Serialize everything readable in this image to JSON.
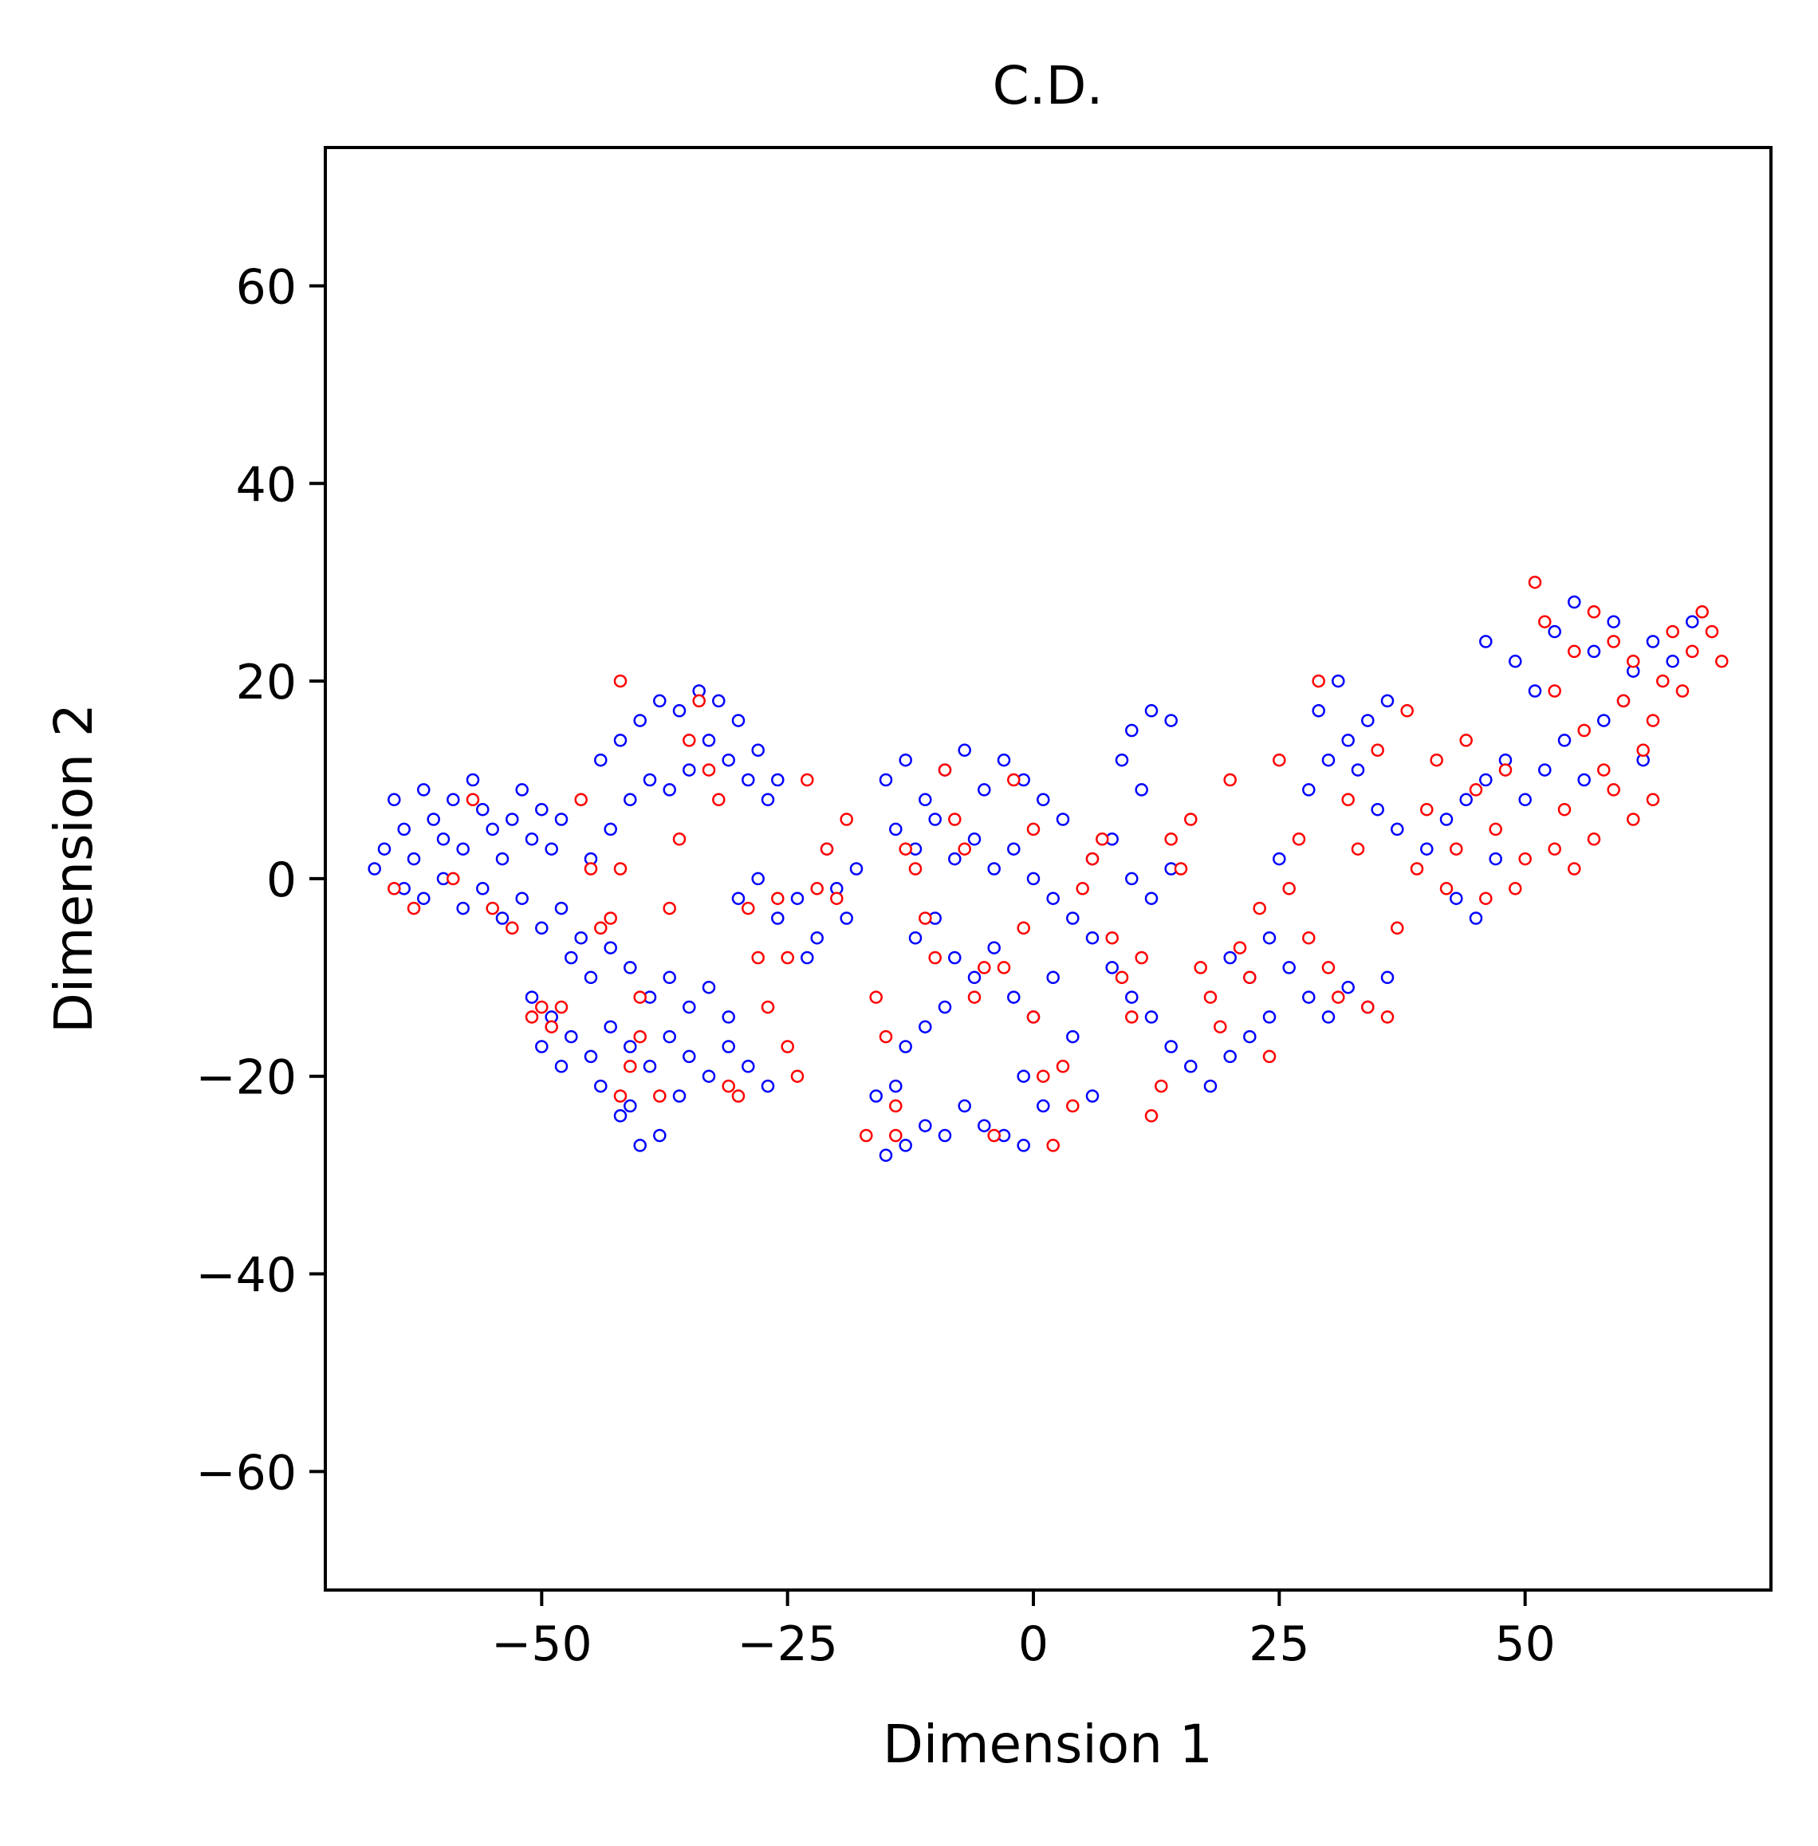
{
  "chart_data": {
    "type": "scatter",
    "title": "C.D.",
    "xlabel": "Dimension 1",
    "ylabel": "Dimension 2",
    "xlim": [
      -72,
      75
    ],
    "ylim": [
      -72,
      74
    ],
    "xticks": [
      -50,
      -25,
      0,
      25,
      50
    ],
    "yticks": [
      -60,
      -40,
      -20,
      0,
      20,
      40,
      60
    ],
    "xtick_labels": [
      "−50",
      "−25",
      "0",
      "25",
      "50"
    ],
    "ytick_labels": [
      "−60",
      "−40",
      "−20",
      "0",
      "20",
      "40",
      "60"
    ],
    "grid": false,
    "legend": false,
    "marker": "hollow-circle",
    "series": [
      {
        "color": "#0000ff",
        "points": [
          [
            -67,
            1
          ],
          [
            -66,
            3
          ],
          [
            -65,
            8
          ],
          [
            -64,
            5
          ],
          [
            -63,
            2
          ],
          [
            -62,
            9
          ],
          [
            -61,
            6
          ],
          [
            -60,
            4
          ],
          [
            -59,
            8
          ],
          [
            -58,
            3
          ],
          [
            -57,
            10
          ],
          [
            -56,
            7
          ],
          [
            -55,
            5
          ],
          [
            -54,
            2
          ],
          [
            -53,
            6
          ],
          [
            -52,
            9
          ],
          [
            -51,
            4
          ],
          [
            -50,
            7
          ],
          [
            -49,
            3
          ],
          [
            -48,
            6
          ],
          [
            -64,
            -1
          ],
          [
            -62,
            -2
          ],
          [
            -60,
            0
          ],
          [
            -58,
            -3
          ],
          [
            -56,
            -1
          ],
          [
            -54,
            -4
          ],
          [
            -52,
            -2
          ],
          [
            -50,
            -5
          ],
          [
            -48,
            -3
          ],
          [
            -46,
            -6
          ],
          [
            -45,
            2
          ],
          [
            -43,
            5
          ],
          [
            -41,
            8
          ],
          [
            -44,
            12
          ],
          [
            -42,
            14
          ],
          [
            -40,
            16
          ],
          [
            -38,
            18
          ],
          [
            -36,
            17
          ],
          [
            -34,
            19
          ],
          [
            -32,
            18
          ],
          [
            -30,
            16
          ],
          [
            -33,
            14
          ],
          [
            -31,
            12
          ],
          [
            -29,
            10
          ],
          [
            -35,
            11
          ],
          [
            -37,
            9
          ],
          [
            -39,
            10
          ],
          [
            -28,
            13
          ],
          [
            -27,
            8
          ],
          [
            -26,
            10
          ],
          [
            -47,
            -8
          ],
          [
            -45,
            -10
          ],
          [
            -43,
            -7
          ],
          [
            -41,
            -9
          ],
          [
            -39,
            -12
          ],
          [
            -37,
            -10
          ],
          [
            -35,
            -13
          ],
          [
            -33,
            -11
          ],
          [
            -31,
            -14
          ],
          [
            -49,
            -14
          ],
          [
            -47,
            -16
          ],
          [
            -45,
            -18
          ],
          [
            -43,
            -15
          ],
          [
            -41,
            -17
          ],
          [
            -39,
            -19
          ],
          [
            -37,
            -16
          ],
          [
            -35,
            -18
          ],
          [
            -33,
            -20
          ],
          [
            -31,
            -17
          ],
          [
            -29,
            -19
          ],
          [
            -51,
            -12
          ],
          [
            -50,
            -17
          ],
          [
            -48,
            -19
          ],
          [
            -44,
            -21
          ],
          [
            -42,
            -24
          ],
          [
            -40,
            -27
          ],
          [
            -38,
            -26
          ],
          [
            -41,
            -23
          ],
          [
            -36,
            -22
          ],
          [
            -27,
            -21
          ],
          [
            -30,
            -2
          ],
          [
            -28,
            0
          ],
          [
            -26,
            -4
          ],
          [
            -24,
            -2
          ],
          [
            -22,
            -6
          ],
          [
            -20,
            -1
          ],
          [
            -18,
            1
          ],
          [
            -21,
            3
          ],
          [
            -19,
            -4
          ],
          [
            -23,
            -8
          ],
          [
            -15,
            -28
          ],
          [
            -13,
            -27
          ],
          [
            -11,
            -25
          ],
          [
            -9,
            -26
          ],
          [
            -7,
            -23
          ],
          [
            -5,
            -25
          ],
          [
            -3,
            -26
          ],
          [
            -1,
            -27
          ],
          [
            -16,
            -22
          ],
          [
            -14,
            -21
          ],
          [
            -12,
            -6
          ],
          [
            -10,
            -4
          ],
          [
            -8,
            -8
          ],
          [
            -6,
            -10
          ],
          [
            -4,
            -7
          ],
          [
            -2,
            -12
          ],
          [
            0,
            -14
          ],
          [
            -13,
            -17
          ],
          [
            -11,
            -15
          ],
          [
            -9,
            -13
          ],
          [
            -15,
            10
          ],
          [
            -13,
            12
          ],
          [
            -11,
            8
          ],
          [
            -9,
            11
          ],
          [
            -7,
            13
          ],
          [
            -5,
            9
          ],
          [
            -3,
            12
          ],
          [
            -1,
            10
          ],
          [
            1,
            8
          ],
          [
            3,
            6
          ],
          [
            -14,
            5
          ],
          [
            -12,
            3
          ],
          [
            -10,
            6
          ],
          [
            -8,
            2
          ],
          [
            -6,
            4
          ],
          [
            -4,
            1
          ],
          [
            -2,
            3
          ],
          [
            0,
            0
          ],
          [
            2,
            -2
          ],
          [
            4,
            -4
          ],
          [
            6,
            2
          ],
          [
            8,
            4
          ],
          [
            10,
            0
          ],
          [
            12,
            -2
          ],
          [
            14,
            1
          ],
          [
            6,
            -6
          ],
          [
            8,
            -9
          ],
          [
            10,
            -12
          ],
          [
            12,
            -14
          ],
          [
            14,
            -17
          ],
          [
            16,
            -19
          ],
          [
            18,
            -21
          ],
          [
            20,
            -18
          ],
          [
            22,
            -16
          ],
          [
            24,
            -14
          ],
          [
            10,
            15
          ],
          [
            12,
            17
          ],
          [
            14,
            16
          ],
          [
            9,
            12
          ],
          [
            11,
            9
          ],
          [
            2,
            -10
          ],
          [
            4,
            -16
          ],
          [
            6,
            -22
          ],
          [
            -1,
            -20
          ],
          [
            1,
            -23
          ],
          [
            28,
            9
          ],
          [
            30,
            12
          ],
          [
            32,
            14
          ],
          [
            34,
            16
          ],
          [
            36,
            18
          ],
          [
            31,
            20
          ],
          [
            29,
            17
          ],
          [
            33,
            11
          ],
          [
            35,
            7
          ],
          [
            37,
            5
          ],
          [
            20,
            -8
          ],
          [
            22,
            -10
          ],
          [
            24,
            -6
          ],
          [
            26,
            -9
          ],
          [
            28,
            -12
          ],
          [
            30,
            -14
          ],
          [
            32,
            -11
          ],
          [
            34,
            -13
          ],
          [
            36,
            -10
          ],
          [
            25,
            2
          ],
          [
            40,
            3
          ],
          [
            42,
            6
          ],
          [
            44,
            8
          ],
          [
            46,
            10
          ],
          [
            48,
            12
          ],
          [
            43,
            -2
          ],
          [
            45,
            -4
          ],
          [
            47,
            2
          ],
          [
            46,
            24
          ],
          [
            49,
            22
          ],
          [
            51,
            19
          ],
          [
            53,
            25
          ],
          [
            55,
            28
          ],
          [
            57,
            23
          ],
          [
            59,
            26
          ],
          [
            61,
            21
          ],
          [
            63,
            24
          ],
          [
            65,
            22
          ],
          [
            67,
            26
          ],
          [
            50,
            8
          ],
          [
            52,
            11
          ],
          [
            54,
            14
          ],
          [
            56,
            10
          ],
          [
            58,
            16
          ],
          [
            60,
            18
          ],
          [
            62,
            12
          ]
        ]
      },
      {
        "color": "#ff0000",
        "points": [
          [
            -65,
            -1
          ],
          [
            -63,
            -3
          ],
          [
            -59,
            0
          ],
          [
            -57,
            8
          ],
          [
            -55,
            -3
          ],
          [
            -53,
            -5
          ],
          [
            -51,
            -14
          ],
          [
            -50,
            -13
          ],
          [
            -49,
            -15
          ],
          [
            -48,
            -13
          ],
          [
            -46,
            8
          ],
          [
            -45,
            1
          ],
          [
            -44,
            -5
          ],
          [
            -43,
            -4
          ],
          [
            -42,
            1
          ],
          [
            -42,
            20
          ],
          [
            -40,
            -12
          ],
          [
            -40,
            -16
          ],
          [
            -41,
            -19
          ],
          [
            -42,
            -22
          ],
          [
            -38,
            -22
          ],
          [
            -37,
            -3
          ],
          [
            -36,
            4
          ],
          [
            -35,
            14
          ],
          [
            -34,
            18
          ],
          [
            -33,
            11
          ],
          [
            -32,
            8
          ],
          [
            -31,
            -21
          ],
          [
            -30,
            -22
          ],
          [
            -29,
            -3
          ],
          [
            -28,
            -8
          ],
          [
            -27,
            -13
          ],
          [
            -26,
            -2
          ],
          [
            -25,
            -8
          ],
          [
            -25,
            -17
          ],
          [
            -24,
            -20
          ],
          [
            -23,
            10
          ],
          [
            -22,
            -1
          ],
          [
            -21,
            3
          ],
          [
            -20,
            -2
          ],
          [
            -19,
            6
          ],
          [
            -17,
            -26
          ],
          [
            -16,
            -12
          ],
          [
            -15,
            -16
          ],
          [
            -14,
            -23
          ],
          [
            -14,
            -26
          ],
          [
            -13,
            3
          ],
          [
            -12,
            1
          ],
          [
            -11,
            -4
          ],
          [
            -10,
            -8
          ],
          [
            -9,
            11
          ],
          [
            -8,
            6
          ],
          [
            -7,
            3
          ],
          [
            -6,
            -12
          ],
          [
            -5,
            -9
          ],
          [
            -4,
            -26
          ],
          [
            -3,
            -9
          ],
          [
            -2,
            10
          ],
          [
            -1,
            -5
          ],
          [
            0,
            5
          ],
          [
            0,
            -14
          ],
          [
            1,
            -20
          ],
          [
            2,
            -27
          ],
          [
            3,
            -19
          ],
          [
            4,
            -23
          ],
          [
            5,
            -1
          ],
          [
            6,
            2
          ],
          [
            7,
            4
          ],
          [
            8,
            -6
          ],
          [
            9,
            -10
          ],
          [
            10,
            -14
          ],
          [
            11,
            -8
          ],
          [
            12,
            -24
          ],
          [
            13,
            -21
          ],
          [
            14,
            4
          ],
          [
            15,
            1
          ],
          [
            16,
            6
          ],
          [
            17,
            -9
          ],
          [
            18,
            -12
          ],
          [
            19,
            -15
          ],
          [
            20,
            10
          ],
          [
            21,
            -7
          ],
          [
            22,
            -10
          ],
          [
            23,
            -3
          ],
          [
            24,
            -18
          ],
          [
            25,
            12
          ],
          [
            26,
            -1
          ],
          [
            27,
            4
          ],
          [
            28,
            -6
          ],
          [
            29,
            20
          ],
          [
            30,
            -9
          ],
          [
            31,
            -12
          ],
          [
            32,
            8
          ],
          [
            33,
            3
          ],
          [
            34,
            -13
          ],
          [
            35,
            13
          ],
          [
            36,
            -14
          ],
          [
            37,
            -5
          ],
          [
            38,
            17
          ],
          [
            39,
            1
          ],
          [
            40,
            7
          ],
          [
            41,
            12
          ],
          [
            42,
            -1
          ],
          [
            43,
            3
          ],
          [
            44,
            14
          ],
          [
            45,
            9
          ],
          [
            46,
            -2
          ],
          [
            47,
            5
          ],
          [
            48,
            11
          ],
          [
            49,
            -1
          ],
          [
            50,
            2
          ],
          [
            51,
            30
          ],
          [
            52,
            26
          ],
          [
            53,
            19
          ],
          [
            54,
            7
          ],
          [
            55,
            23
          ],
          [
            56,
            15
          ],
          [
            57,
            27
          ],
          [
            58,
            11
          ],
          [
            59,
            24
          ],
          [
            60,
            18
          ],
          [
            61,
            22
          ],
          [
            62,
            13
          ],
          [
            63,
            16
          ],
          [
            64,
            20
          ],
          [
            65,
            25
          ],
          [
            66,
            19
          ],
          [
            67,
            23
          ],
          [
            68,
            27
          ],
          [
            69,
            25
          ],
          [
            70,
            22
          ],
          [
            57,
            4
          ],
          [
            59,
            9
          ],
          [
            61,
            6
          ],
          [
            63,
            8
          ],
          [
            55,
            1
          ],
          [
            53,
            3
          ]
        ]
      }
    ]
  }
}
